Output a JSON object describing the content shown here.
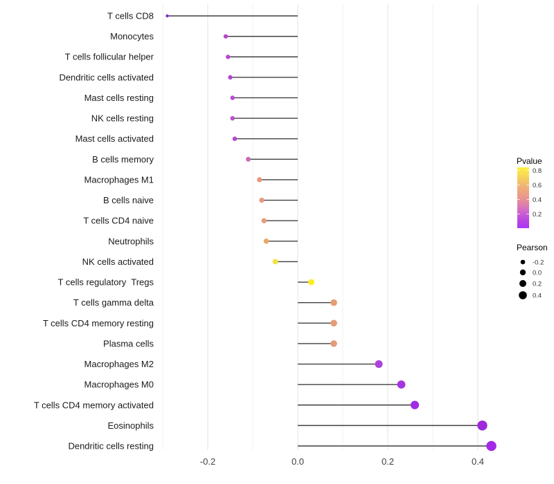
{
  "chart_data": {
    "type": "lollipop",
    "orientation": "horizontal",
    "title": "",
    "xlabel": "",
    "ylabel": "",
    "grid": "on",
    "baseline": 0,
    "xlim": [
      -0.305,
      0.455
    ],
    "x_major_ticks": [
      -0.2,
      0.0,
      0.2,
      0.4
    ],
    "x_major_tick_labels": [
      "-0.2",
      "0.0",
      "0.2",
      "0.4"
    ],
    "x_minor_ticks": [
      -0.3,
      -0.1,
      0.1,
      0.3
    ],
    "stem_color": "#3f3f3f",
    "points": [
      {
        "label": "T cells CD8",
        "pearson": -0.29,
        "color": "#8823dd"
      },
      {
        "label": "Monocytes",
        "pearson": -0.16,
        "color": "#bb43cf"
      },
      {
        "label": "T cells follicular helper",
        "pearson": -0.155,
        "color": "#b845d2"
      },
      {
        "label": "Dendritic cells activated",
        "pearson": -0.15,
        "color": "#b544d4"
      },
      {
        "label": "Mast cells resting",
        "pearson": -0.145,
        "color": "#bb4bd0"
      },
      {
        "label": "NK cells resting",
        "pearson": -0.145,
        "color": "#bd4fcc"
      },
      {
        "label": "Mast cells activated",
        "pearson": -0.14,
        "color": "#b746d4"
      },
      {
        "label": "B cells memory",
        "pearson": -0.11,
        "color": "#c969b7"
      },
      {
        "label": "Macrophages M1",
        "pearson": -0.085,
        "color": "#e8987c"
      },
      {
        "label": "B cells naive",
        "pearson": -0.08,
        "color": "#e69a80"
      },
      {
        "label": "T cells CD4 naive",
        "pearson": -0.075,
        "color": "#e79c78"
      },
      {
        "label": "Neutrophils",
        "pearson": -0.07,
        "color": "#e9a962"
      },
      {
        "label": "NK cells activated",
        "pearson": -0.05,
        "color": "#f2e33e"
      },
      {
        "label": "T cells regulatory  Tregs",
        "pearson": 0.03,
        "color": "#fbee20"
      },
      {
        "label": "T cells gamma delta",
        "pearson": 0.08,
        "color": "#e59d74"
      },
      {
        "label": "T cells CD4 memory resting",
        "pearson": 0.08,
        "color": "#e59d79"
      },
      {
        "label": "Plasma cells",
        "pearson": 0.08,
        "color": "#e49b7b"
      },
      {
        "label": "Macrophages M2",
        "pearson": 0.18,
        "color": "#af42d9"
      },
      {
        "label": "Macrophages M0",
        "pearson": 0.23,
        "color": "#a535e1"
      },
      {
        "label": "T cells CD4 memory activated",
        "pearson": 0.26,
        "color": "#a02ce4"
      },
      {
        "label": "Eosinophils",
        "pearson": 0.41,
        "color": "#9d29da"
      },
      {
        "label": "Dendritic cells resting",
        "pearson": 0.43,
        "color": "#a428e7"
      }
    ],
    "legend": {
      "color": {
        "title": "Pvalue",
        "tick_labels": [
          "0.8",
          "0.6",
          "0.4",
          "0.2"
        ],
        "gradient": [
          {
            "offset": 0.0,
            "color": "#fcf13e"
          },
          {
            "offset": 0.15,
            "color": "#f7d55a"
          },
          {
            "offset": 0.32,
            "color": "#f0b077"
          },
          {
            "offset": 0.48,
            "color": "#ea9a8a"
          },
          {
            "offset": 0.62,
            "color": "#de7fae"
          },
          {
            "offset": 0.75,
            "color": "#cd5fd2"
          },
          {
            "offset": 0.88,
            "color": "#b846e3"
          },
          {
            "offset": 1.0,
            "color": "#a837f4"
          }
        ]
      },
      "size": {
        "title": "Pearson",
        "entries": [
          {
            "label": "-0.2",
            "r": 3.3
          },
          {
            "label": "0.0",
            "r": 4.2
          },
          {
            "label": "0.2",
            "r": 5.0
          },
          {
            "label": "0.4",
            "r": 5.8
          }
        ]
      }
    }
  }
}
